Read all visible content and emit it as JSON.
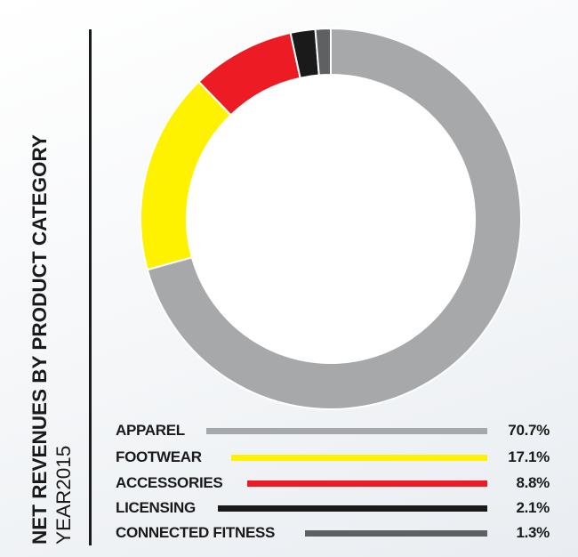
{
  "chart_data": {
    "type": "pie",
    "title": "NET REVENUES BY PRODUCT CATEGORY",
    "subtitle": "YEAR2015",
    "categories": [
      "APPAREL",
      "FOOTWEAR",
      "ACCESSORIES",
      "LICENSING",
      "CONNECTED FITNESS"
    ],
    "values": [
      70.7,
      17.1,
      8.8,
      2.1,
      1.3
    ],
    "value_labels": [
      "70.7%",
      "17.1%",
      "8.8%",
      "2.1%",
      "1.3%"
    ],
    "colors": [
      "#a7a8aa",
      "#fff200",
      "#ed1c24",
      "#1a1a1a",
      "#5f6062"
    ],
    "legend": "bottom"
  }
}
